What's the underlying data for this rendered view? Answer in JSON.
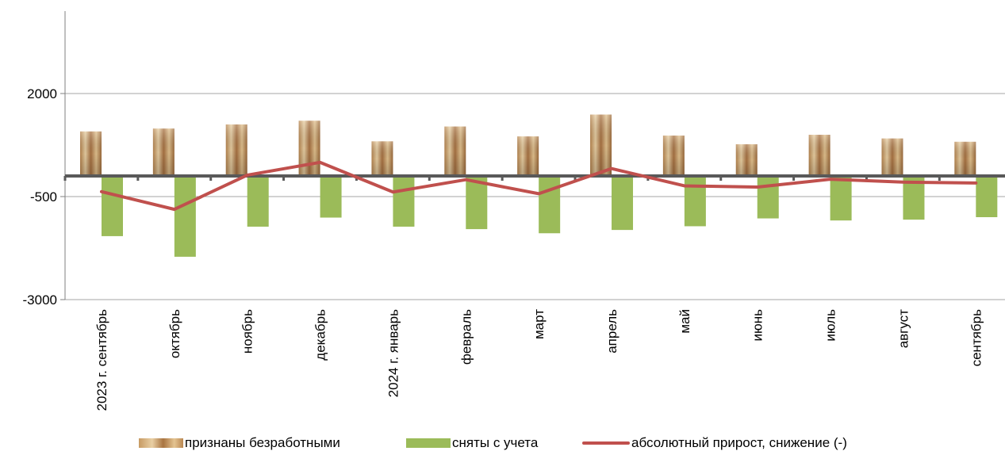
{
  "chart_data": {
    "type": "bar",
    "categories": [
      "2023 г. сентябрь",
      "октябрь",
      "ноябрь",
      "декабрь",
      "2024 г. январь",
      "февраль",
      "март",
      "апрель",
      "май",
      "июнь",
      "июль",
      "август",
      "сентябрь"
    ],
    "series": [
      {
        "name": "признаны безработными",
        "type": "bar",
        "color": "#c9a06b",
        "values": [
          1080,
          1150,
          1250,
          1340,
          840,
          1200,
          960,
          1490,
          980,
          770,
          1000,
          910,
          830
        ]
      },
      {
        "name": "сняты с учета",
        "type": "bar",
        "color": "#9bbb59",
        "values": [
          -1460,
          -1960,
          -1230,
          -1010,
          -1230,
          -1290,
          -1390,
          -1310,
          -1220,
          -1030,
          -1080,
          -1060,
          -1000
        ]
      },
      {
        "name": "абсолютный прирост, снижение (-)",
        "type": "line",
        "color": "#c0504d",
        "values": [
          -380,
          -810,
          20,
          330,
          -390,
          -90,
          -430,
          180,
          -240,
          -270,
          -80,
          -150,
          -170
        ]
      }
    ],
    "yticks": [
      "2000",
      "-500",
      "-3000"
    ],
    "ylim": [
      -3000,
      4000
    ],
    "grid": true,
    "legend_position": "bottom"
  }
}
